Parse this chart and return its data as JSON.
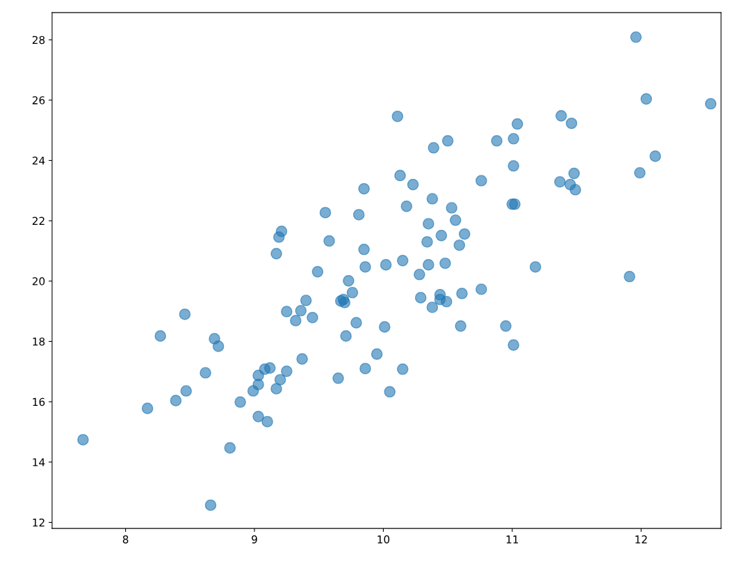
{
  "chart_data": {
    "type": "scatter",
    "xlim": [
      7.43,
      12.62
    ],
    "ylim": [
      11.8,
      28.9
    ],
    "xticks": [
      8,
      9,
      10,
      11,
      12
    ],
    "yticks": [
      12,
      14,
      16,
      18,
      20,
      22,
      24,
      26,
      28
    ],
    "grid": false,
    "marker": "circle",
    "series": [
      {
        "color": "#1f77b4",
        "x": [
          7.67,
          8.17,
          8.27,
          8.39,
          8.46,
          8.47,
          8.62,
          8.69,
          8.72,
          8.81,
          8.89,
          8.99,
          9.03,
          9.03,
          9.03,
          9.08,
          9.12,
          9.1,
          9.17,
          9.2,
          9.25,
          9.17,
          9.19,
          9.21,
          9.25,
          9.32,
          9.36,
          9.37,
          9.4,
          9.45,
          9.49,
          9.55,
          9.58,
          9.65,
          9.67,
          9.7,
          9.69,
          9.71,
          9.73,
          9.76,
          9.79,
          9.81,
          9.85,
          9.85,
          9.86,
          9.86,
          9.95,
          10.02,
          10.01,
          10.05,
          10.11,
          10.13,
          10.15,
          10.15,
          10.18,
          10.23,
          10.28,
          10.29,
          10.34,
          10.35,
          10.35,
          10.38,
          10.38,
          10.39,
          10.44,
          10.44,
          10.45,
          10.48,
          10.49,
          10.5,
          10.53,
          10.56,
          10.59,
          10.6,
          10.61,
          10.63,
          10.76,
          10.76,
          10.88,
          10.95,
          11.01,
          11.01,
          11.0,
          11.02,
          11.01,
          11.04,
          11.18,
          11.37,
          11.38,
          11.45,
          11.46,
          11.48,
          11.49,
          11.91,
          11.96,
          11.99,
          12.04,
          12.11,
          12.54,
          8.66
        ],
        "values": [
          14.74,
          15.78,
          18.18,
          16.04,
          18.9,
          16.36,
          16.96,
          18.09,
          17.84,
          14.47,
          15.99,
          16.36,
          16.87,
          16.57,
          15.51,
          17.08,
          17.12,
          15.34,
          16.43,
          16.73,
          17.01,
          20.91,
          21.46,
          21.65,
          18.99,
          18.69,
          19.02,
          17.42,
          19.36,
          18.79,
          20.31,
          22.27,
          21.33,
          16.78,
          19.34,
          19.29,
          19.39,
          18.18,
          20.01,
          19.62,
          18.62,
          22.2,
          23.06,
          21.05,
          20.47,
          17.1,
          17.58,
          20.54,
          18.48,
          16.33,
          25.46,
          23.5,
          20.68,
          17.08,
          22.48,
          23.2,
          20.22,
          19.45,
          21.3,
          21.9,
          20.54,
          22.73,
          19.13,
          24.42,
          19.55,
          19.39,
          21.51,
          20.59,
          19.32,
          24.65,
          22.43,
          22.02,
          21.19,
          18.51,
          19.59,
          21.56,
          19.73,
          23.33,
          24.65,
          18.51,
          24.72,
          23.82,
          22.55,
          22.55,
          17.88,
          25.21,
          20.47,
          23.29,
          25.48,
          23.2,
          25.23,
          23.57,
          23.03,
          20.15,
          28.09,
          23.59,
          26.04,
          24.14,
          25.88,
          12.57
        ]
      }
    ]
  }
}
